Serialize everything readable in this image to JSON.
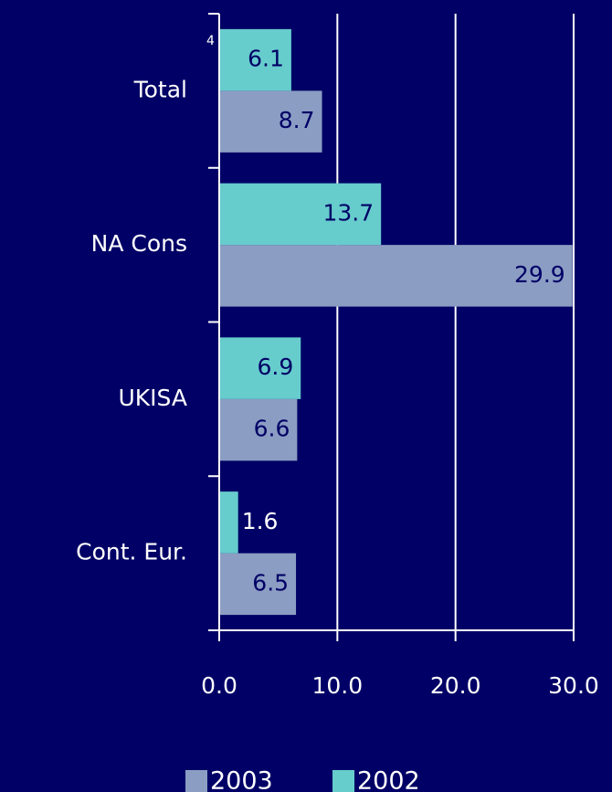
{
  "chart_data": {
    "type": "hbar",
    "categories": [
      "Total",
      "NA Cons",
      "UKISA",
      "Cont. Eur."
    ],
    "series": [
      {
        "name": "2003",
        "color": "#8b9dc3",
        "values": [
          8.7,
          29.9,
          6.6,
          6.5
        ]
      },
      {
        "name": "2002",
        "color": "#66cccc",
        "values": [
          6.1,
          13.7,
          6.9,
          1.6
        ]
      }
    ],
    "annotation": "4",
    "xlim": [
      0,
      30
    ],
    "xticks": [
      {
        "value": 0,
        "label": "0.0"
      },
      {
        "value": 10,
        "label": "10.0"
      },
      {
        "value": 20,
        "label": "20.0"
      },
      {
        "value": 30,
        "label": "30.0"
      }
    ],
    "grid": true,
    "legend": "bottom"
  }
}
